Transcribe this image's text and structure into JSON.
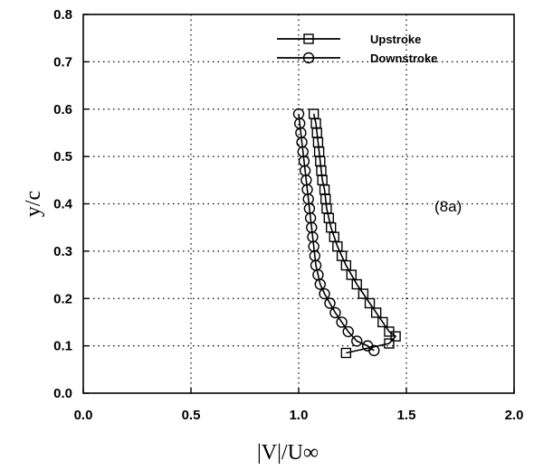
{
  "chart_data": {
    "type": "line",
    "xlabel": "|V|/U∞",
    "ylabel": "y/c",
    "xlim": [
      0.0,
      2.0
    ],
    "ylim": [
      0.0,
      0.8
    ],
    "xticks": [
      "0.0",
      "0.5",
      "1.0",
      "1.5",
      "2.0"
    ],
    "yticks": [
      "0.0",
      "0.1",
      "0.2",
      "0.3",
      "0.4",
      "0.5",
      "0.6",
      "0.7",
      "0.8"
    ],
    "grid": true,
    "legend_position": "top-right",
    "annotation": "(8a)",
    "series": [
      {
        "name": "Upstroke",
        "marker": "square",
        "points": [
          [
            1.07,
            0.59
          ],
          [
            1.08,
            0.57
          ],
          [
            1.085,
            0.55
          ],
          [
            1.09,
            0.53
          ],
          [
            1.095,
            0.51
          ],
          [
            1.1,
            0.49
          ],
          [
            1.105,
            0.47
          ],
          [
            1.11,
            0.45
          ],
          [
            1.12,
            0.43
          ],
          [
            1.125,
            0.41
          ],
          [
            1.13,
            0.39
          ],
          [
            1.14,
            0.37
          ],
          [
            1.15,
            0.35
          ],
          [
            1.165,
            0.33
          ],
          [
            1.18,
            0.31
          ],
          [
            1.2,
            0.29
          ],
          [
            1.22,
            0.27
          ],
          [
            1.245,
            0.25
          ],
          [
            1.27,
            0.23
          ],
          [
            1.3,
            0.21
          ],
          [
            1.33,
            0.19
          ],
          [
            1.36,
            0.17
          ],
          [
            1.39,
            0.15
          ],
          [
            1.42,
            0.13
          ],
          [
            1.45,
            0.12
          ],
          [
            1.42,
            0.105
          ],
          [
            1.22,
            0.085
          ]
        ]
      },
      {
        "name": "Downstroke",
        "marker": "circle",
        "points": [
          [
            1.0,
            0.59
          ],
          [
            1.005,
            0.57
          ],
          [
            1.01,
            0.55
          ],
          [
            1.015,
            0.53
          ],
          [
            1.02,
            0.51
          ],
          [
            1.025,
            0.49
          ],
          [
            1.03,
            0.47
          ],
          [
            1.035,
            0.45
          ],
          [
            1.04,
            0.43
          ],
          [
            1.045,
            0.41
          ],
          [
            1.05,
            0.39
          ],
          [
            1.055,
            0.37
          ],
          [
            1.06,
            0.35
          ],
          [
            1.065,
            0.33
          ],
          [
            1.07,
            0.31
          ],
          [
            1.075,
            0.29
          ],
          [
            1.08,
            0.27
          ],
          [
            1.09,
            0.25
          ],
          [
            1.1,
            0.23
          ],
          [
            1.12,
            0.21
          ],
          [
            1.145,
            0.19
          ],
          [
            1.17,
            0.17
          ],
          [
            1.2,
            0.15
          ],
          [
            1.23,
            0.13
          ],
          [
            1.27,
            0.11
          ],
          [
            1.32,
            0.1
          ],
          [
            1.35,
            0.09
          ]
        ]
      }
    ]
  }
}
